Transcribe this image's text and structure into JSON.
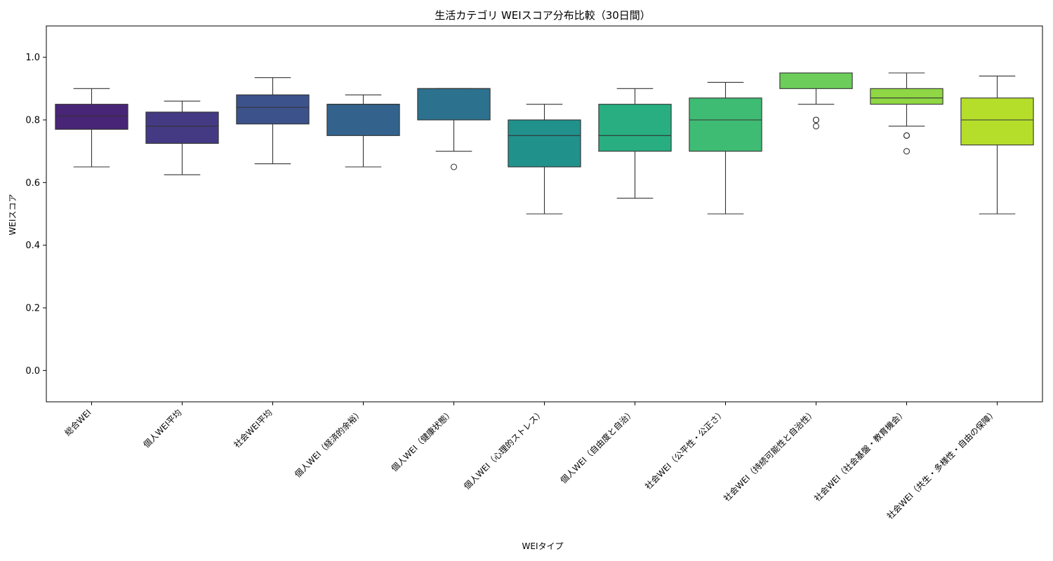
{
  "chart_data": {
    "type": "box",
    "title": "生活カテゴリ WEIスコア分布比較（30日間）",
    "xlabel": "WEIタイプ",
    "ylabel": "WEIスコア",
    "ylim": [
      -0.1,
      1.1
    ],
    "yticks": [
      0.0,
      0.2,
      0.4,
      0.6,
      0.8,
      1.0
    ],
    "ytick_labels": [
      "0.0",
      "0.2",
      "0.4",
      "0.6",
      "0.8",
      "1.0"
    ],
    "grid": false,
    "categories": [
      "総合WEI",
      "個人WEI平均",
      "社会WEI平均",
      "個人WEI（経済的余裕）",
      "個人WEI（健康状態）",
      "個人WEI（心理的ストレス）",
      "個人WEI（自由度と自治）",
      "社会WEI（公平性・公正さ）",
      "社会WEI（持続可能性と自治性）",
      "社会WEI（社会基盤・教育機会）",
      "社会WEI（共生・多様性・自由の保障）"
    ],
    "boxes": [
      {
        "whisker_low": 0.65,
        "q1": 0.77,
        "median": 0.812,
        "q3": 0.85,
        "whisker_high": 0.9,
        "outliers": [],
        "color": "#482576"
      },
      {
        "whisker_low": 0.625,
        "q1": 0.725,
        "median": 0.78,
        "q3": 0.825,
        "whisker_high": 0.86,
        "outliers": [],
        "color": "#443a83"
      },
      {
        "whisker_low": 0.66,
        "q1": 0.787,
        "median": 0.84,
        "q3": 0.88,
        "whisker_high": 0.935,
        "outliers": [],
        "color": "#3b528b"
      },
      {
        "whisker_low": 0.65,
        "q1": 0.75,
        "median": 0.85,
        "q3": 0.85,
        "whisker_high": 0.88,
        "outliers": [],
        "color": "#33638d"
      },
      {
        "whisker_low": 0.7,
        "q1": 0.8,
        "median": 0.9,
        "q3": 0.9,
        "whisker_high": 0.9,
        "outliers": [
          0.65
        ],
        "color": "#2c728e"
      },
      {
        "whisker_low": 0.5,
        "q1": 0.65,
        "median": 0.75,
        "q3": 0.8,
        "whisker_high": 0.85,
        "outliers": [],
        "color": "#21918c"
      },
      {
        "whisker_low": 0.55,
        "q1": 0.7,
        "median": 0.75,
        "q3": 0.85,
        "whisker_high": 0.9,
        "outliers": [],
        "color": "#28ae80"
      },
      {
        "whisker_low": 0.5,
        "q1": 0.7,
        "median": 0.8,
        "q3": 0.87,
        "whisker_high": 0.92,
        "outliers": [],
        "color": "#3fbc73"
      },
      {
        "whisker_low": 0.85,
        "q1": 0.9,
        "median": 0.95,
        "q3": 0.95,
        "whisker_high": 0.95,
        "outliers": [
          0.8,
          0.8,
          0.78
        ],
        "color": "#6ccd5a"
      },
      {
        "whisker_low": 0.78,
        "q1": 0.85,
        "median": 0.87,
        "q3": 0.9,
        "whisker_high": 0.95,
        "outliers": [
          0.75,
          0.75,
          0.7
        ],
        "color": "#8fd744"
      },
      {
        "whisker_low": 0.5,
        "q1": 0.72,
        "median": 0.8,
        "q3": 0.87,
        "whisker_high": 0.94,
        "outliers": [],
        "color": "#b5de2b"
      }
    ]
  }
}
